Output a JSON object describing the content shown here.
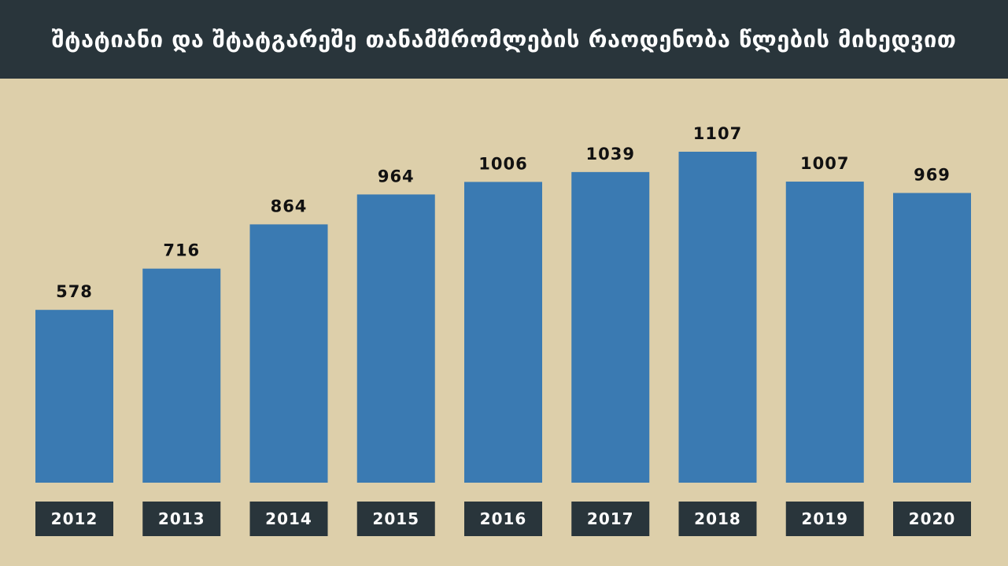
{
  "header": {
    "title": "შტატიანი და შტატგარეშე თანამშრომლების რაოდენობა წლების მიხედვით"
  },
  "colors": {
    "background": "#ddcfaa",
    "header": "#29353b",
    "bar": "#3a7ab2",
    "category_box": "#29353b"
  },
  "chart_data": {
    "type": "bar",
    "title": "შტატიანი და შტატგარეშე თანამშრომლების რაოდენობა წლების მიხედვით",
    "categories": [
      "2012",
      "2013",
      "2014",
      "2015",
      "2016",
      "2017",
      "2018",
      "2019",
      "2020"
    ],
    "values": [
      578,
      716,
      864,
      964,
      1006,
      1039,
      1107,
      1007,
      969
    ],
    "xlabel": "",
    "ylabel": "",
    "ylim": [
      0,
      1107
    ],
    "grid": false,
    "legend": "none",
    "data_labels": true
  }
}
